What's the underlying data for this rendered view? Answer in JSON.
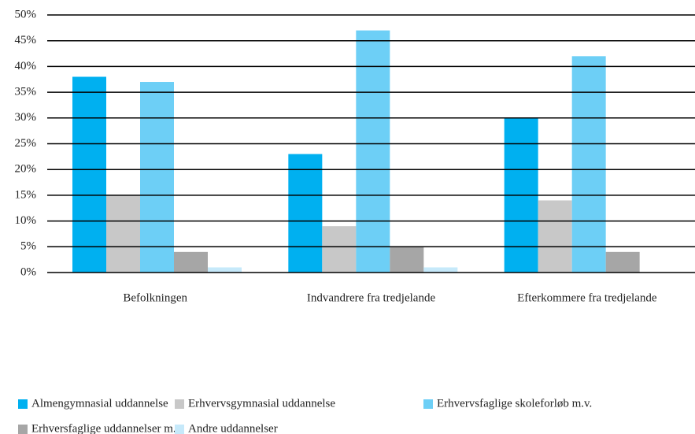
{
  "chart_data": {
    "type": "bar",
    "categories": [
      "Befolkningen",
      "Indvandrere fra tredjelande",
      "Efterkommere fra tredjelande"
    ],
    "series": [
      {
        "name": "Almengymnasial uddannelse",
        "color": "#00b0f0",
        "values": [
          38,
          23,
          30
        ]
      },
      {
        "name": "Erhvervsgymnasial uddannelse",
        "color": "#c8c8c8",
        "values": [
          15,
          9,
          14
        ]
      },
      {
        "name": "Erhvervsfaglige skoleforløb m.v.",
        "color": "#6dcff6",
        "values": [
          37,
          47,
          42
        ]
      },
      {
        "name": "Erhversfaglige uddannelser m.v.",
        "color": "#a6a6a6",
        "values": [
          4,
          5,
          4
        ]
      },
      {
        "name": "Andre uddannelser",
        "color": "#c6e9fa",
        "values": [
          1,
          1,
          0
        ]
      }
    ],
    "ylim": [
      0,
      50
    ],
    "yticks": [
      {
        "value": 0,
        "label": "0%"
      },
      {
        "value": 5,
        "label": "5%"
      },
      {
        "value": 10,
        "label": "10%"
      },
      {
        "value": 15,
        "label": "15%"
      },
      {
        "value": 20,
        "label": "20%"
      },
      {
        "value": 25,
        "label": "25%"
      },
      {
        "value": 30,
        "label": "30%"
      },
      {
        "value": 35,
        "label": "35%"
      },
      {
        "value": 40,
        "label": "40%"
      },
      {
        "value": 45,
        "label": "45%"
      },
      {
        "value": 50,
        "label": "50%"
      }
    ],
    "grid": true,
    "legend": "bottom"
  }
}
